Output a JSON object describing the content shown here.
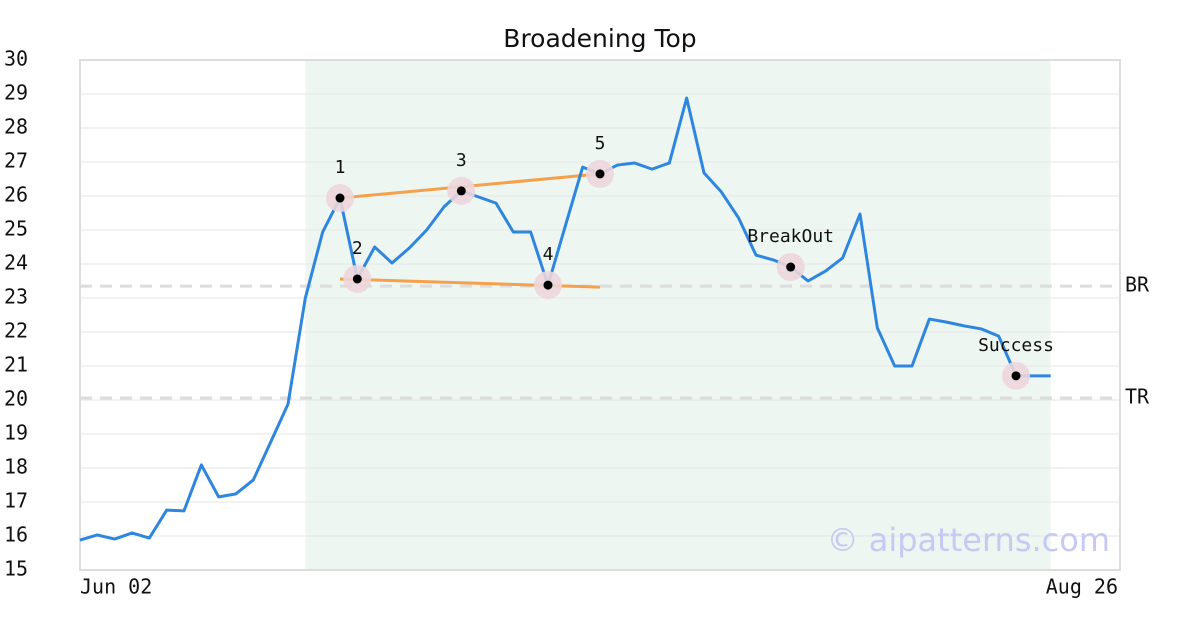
{
  "chart_data": {
    "type": "line",
    "title": "Broadening Top",
    "watermark": "© aipatterns.com",
    "x": [
      0,
      1,
      2,
      3,
      4,
      5,
      6,
      7,
      8,
      9,
      10,
      11,
      12,
      13,
      14,
      15,
      16,
      17,
      18,
      19,
      20,
      21,
      22,
      23,
      24,
      25,
      26,
      27,
      28,
      29,
      30,
      31,
      32,
      33,
      34,
      35,
      36,
      37,
      38,
      39,
      40,
      41,
      42,
      43,
      44,
      45,
      46,
      47,
      48,
      49,
      50,
      51,
      52,
      53,
      54,
      55,
      56
    ],
    "series": [
      {
        "color": "#2e86de",
        "values": [
          15.88,
          16.03,
          15.91,
          16.09,
          15.94,
          16.76,
          16.74,
          18.09,
          17.15,
          17.24,
          17.65,
          18.76,
          19.88,
          23.0,
          24.94,
          25.94,
          23.56,
          24.5,
          24.03,
          24.47,
          25.0,
          25.68,
          26.15,
          25.97,
          25.79,
          24.94,
          24.94,
          23.38,
          25.12,
          26.85,
          26.65,
          26.91,
          26.97,
          26.79,
          26.97,
          28.88,
          26.68,
          26.12,
          25.35,
          24.26,
          24.12,
          23.91,
          23.5,
          23.79,
          24.18,
          25.47,
          22.12,
          21.0,
          21.0,
          22.38,
          22.29,
          22.18,
          22.09,
          21.88,
          20.71,
          20.71,
          20.71
        ]
      }
    ],
    "xlim": [
      0,
      60
    ],
    "xticks": [
      {
        "value": 0,
        "label": "Jun 02"
      },
      {
        "value": 60,
        "label": "Aug 26"
      }
    ],
    "ylim": [
      15,
      30
    ],
    "yticks": [
      15,
      16,
      17,
      18,
      19,
      20,
      21,
      22,
      23,
      24,
      25,
      26,
      27,
      28,
      29,
      30
    ],
    "grid": true,
    "highlight_range": [
      13,
      56
    ],
    "highlight_color": "#eef6f2",
    "trendline_color": "#f5a04c",
    "trendlines": [
      {
        "x": [
          15,
          30
        ],
        "y": [
          25.94,
          26.65
        ]
      },
      {
        "x": [
          15,
          30
        ],
        "y": [
          23.56,
          23.32
        ]
      }
    ],
    "levels": [
      {
        "label": "BR",
        "value": 23.35
      },
      {
        "label": "TR",
        "value": 20.06
      }
    ],
    "annotations": [
      {
        "label": "1",
        "x": 15,
        "y": 25.94
      },
      {
        "label": "2",
        "x": 16,
        "y": 23.56
      },
      {
        "label": "3",
        "x": 22,
        "y": 26.15
      },
      {
        "label": "4",
        "x": 27,
        "y": 23.38
      },
      {
        "label": "5",
        "x": 30,
        "y": 26.65
      },
      {
        "label": "BreakOut",
        "x": 41,
        "y": 23.91
      },
      {
        "label": "Success",
        "x": 54,
        "y": 20.71
      }
    ]
  }
}
